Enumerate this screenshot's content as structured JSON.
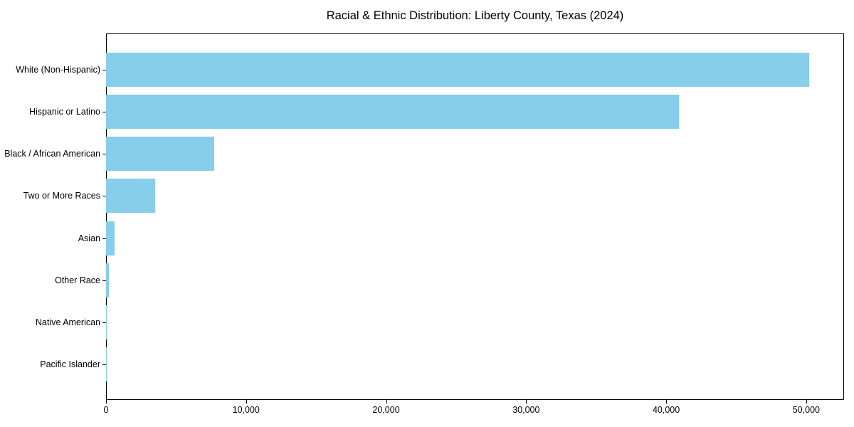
{
  "chart_data": {
    "type": "bar",
    "orientation": "horizontal",
    "title": "Racial & Ethnic Distribution: Liberty County, Texas (2024)",
    "categories": [
      "White (Non-Hispanic)",
      "Hispanic or Latino",
      "Black / African American",
      "Two or More Races",
      "Asian",
      "Other Race",
      "Native American",
      "Pacific Islander"
    ],
    "values": [
      50200,
      40900,
      7700,
      3500,
      600,
      220,
      60,
      20
    ],
    "xlabel": "",
    "ylabel": "",
    "xlim": [
      0,
      52700
    ],
    "xticks": [
      0,
      10000,
      20000,
      30000,
      40000,
      50000
    ],
    "xtick_labels": [
      "0",
      "10,000",
      "20,000",
      "30,000",
      "40,000",
      "50,000"
    ],
    "bar_color": "#87CEEB",
    "background_color": "#ffffff",
    "axis_color": "#000000",
    "grid": false,
    "legend": "none"
  }
}
